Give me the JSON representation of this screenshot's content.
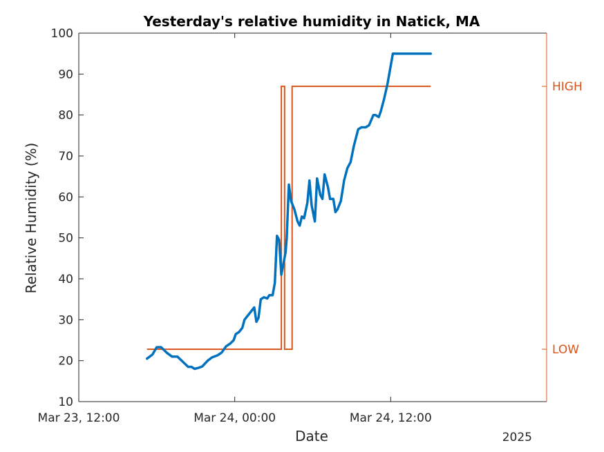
{
  "chart_data": {
    "type": "line",
    "title": "Yesterday's relative humidity in Natick, MA",
    "xlabel": "Date",
    "ylabel": "Relative Humidity (%)",
    "year_label": "2025",
    "x_ticks": [
      "Mar 23, 12:00",
      "Mar 24, 00:00",
      "Mar 24, 12:00"
    ],
    "x_range": [
      "2025-03-23 12:00",
      "2025-03-25 00:00"
    ],
    "ylim": [
      10,
      100
    ],
    "y_ticks": [
      10,
      20,
      30,
      40,
      50,
      60,
      70,
      80,
      90,
      100
    ],
    "right_axis": {
      "tick_labels": [
        "LOW",
        "HIGH"
      ],
      "color": "#D95319"
    },
    "colors": {
      "humidity": "#0072BD",
      "state": "#D95319",
      "axis": "#262626"
    },
    "series": [
      {
        "values": [
          [
            "2025-03-23 17:15",
            20.5
          ],
          [
            "2025-03-23 17:40",
            21.5
          ],
          [
            "2025-03-23 18:00",
            23.3
          ],
          [
            "2025-03-23 18:20",
            23.3
          ],
          [
            "2025-03-23 18:45",
            22.0
          ],
          [
            "2025-03-23 19:10",
            21.0
          ],
          [
            "2025-03-23 19:35",
            21.0
          ],
          [
            "2025-03-23 20:05",
            19.5
          ],
          [
            "2025-03-23 20:25",
            18.5
          ],
          [
            "2025-03-23 20:40",
            18.5
          ],
          [
            "2025-03-23 20:55",
            18.0
          ],
          [
            "2025-03-23 21:15",
            18.3
          ],
          [
            "2025-03-23 21:30",
            18.6
          ],
          [
            "2025-03-23 21:55",
            20.0
          ],
          [
            "2025-03-23 22:15",
            20.8
          ],
          [
            "2025-03-23 22:40",
            21.3
          ],
          [
            "2025-03-23 23:00",
            22.0
          ],
          [
            "2025-03-23 23:20",
            23.5
          ],
          [
            "2025-03-23 23:40",
            24.2
          ],
          [
            "2025-03-23 23:55",
            25.0
          ],
          [
            "2025-03-24 00:05",
            26.5
          ],
          [
            "2025-03-24 00:20",
            27.0
          ],
          [
            "2025-03-24 00:35",
            28.0
          ],
          [
            "2025-03-24 00:45",
            30.0
          ],
          [
            "2025-03-24 01:00",
            31.0
          ],
          [
            "2025-03-24 01:15",
            32.0
          ],
          [
            "2025-03-24 01:30",
            33.0
          ],
          [
            "2025-03-24 01:40",
            29.5
          ],
          [
            "2025-03-24 01:50",
            30.5
          ],
          [
            "2025-03-24 02:00",
            35.0
          ],
          [
            "2025-03-24 02:15",
            35.5
          ],
          [
            "2025-03-24 02:30",
            35.2
          ],
          [
            "2025-03-24 02:40",
            36.0
          ],
          [
            "2025-03-24 02:55",
            36.0
          ],
          [
            "2025-03-24 03:05",
            39.0
          ],
          [
            "2025-03-24 03:15",
            50.5
          ],
          [
            "2025-03-24 03:25",
            49.5
          ],
          [
            "2025-03-24 03:35",
            41.0
          ],
          [
            "2025-03-24 03:55",
            46.5
          ],
          [
            "2025-03-24 04:00",
            50.0
          ],
          [
            "2025-03-24 04:10",
            63.0
          ],
          [
            "2025-03-24 04:20",
            59.0
          ],
          [
            "2025-03-24 04:35",
            57.0
          ],
          [
            "2025-03-24 04:50",
            54.0
          ],
          [
            "2025-03-24 05:00",
            53.0
          ],
          [
            "2025-03-24 05:10",
            55.2
          ],
          [
            "2025-03-24 05:20",
            54.8
          ],
          [
            "2025-03-24 05:35",
            58.5
          ],
          [
            "2025-03-24 05:45",
            64.0
          ],
          [
            "2025-03-24 05:55",
            58.0
          ],
          [
            "2025-03-24 06:10",
            54.0
          ],
          [
            "2025-03-24 06:20",
            64.5
          ],
          [
            "2025-03-24 06:35",
            60.5
          ],
          [
            "2025-03-24 06:45",
            59.5
          ],
          [
            "2025-03-24 06:55",
            65.5
          ],
          [
            "2025-03-24 07:10",
            62.5
          ],
          [
            "2025-03-24 07:20",
            59.5
          ],
          [
            "2025-03-24 07:35",
            59.5
          ],
          [
            "2025-03-24 07:45",
            56.3
          ],
          [
            "2025-03-24 07:55",
            57.0
          ],
          [
            "2025-03-24 08:10",
            59.0
          ],
          [
            "2025-03-24 08:25",
            64.0
          ],
          [
            "2025-03-24 08:40",
            67.0
          ],
          [
            "2025-03-24 08:55",
            68.5
          ],
          [
            "2025-03-24 09:10",
            72.5
          ],
          [
            "2025-03-24 09:30",
            76.5
          ],
          [
            "2025-03-24 09:45",
            77.0
          ],
          [
            "2025-03-24 10:05",
            77.0
          ],
          [
            "2025-03-24 10:20",
            77.5
          ],
          [
            "2025-03-24 10:40",
            80.0
          ],
          [
            "2025-03-24 10:50",
            80.0
          ],
          [
            "2025-03-24 11:05",
            79.5
          ],
          [
            "2025-03-24 11:15",
            81.0
          ],
          [
            "2025-03-24 11:30",
            84.0
          ],
          [
            "2025-03-24 11:45",
            87.5
          ],
          [
            "2025-03-24 12:10",
            95.0
          ],
          [
            "2025-03-24 15:05",
            95.0
          ]
        ]
      },
      {
        "values": [
          [
            "2025-03-23 17:15",
            "LOW"
          ],
          [
            "2025-03-24 03:35",
            "LOW"
          ],
          [
            "2025-03-24 03:35",
            "HIGH"
          ],
          [
            "2025-03-24 03:50",
            "HIGH"
          ],
          [
            "2025-03-24 03:50",
            "LOW"
          ],
          [
            "2025-03-24 04:25",
            "LOW"
          ],
          [
            "2025-03-24 04:25",
            "HIGH"
          ],
          [
            "2025-03-24 15:05",
            "HIGH"
          ]
        ]
      }
    ]
  }
}
